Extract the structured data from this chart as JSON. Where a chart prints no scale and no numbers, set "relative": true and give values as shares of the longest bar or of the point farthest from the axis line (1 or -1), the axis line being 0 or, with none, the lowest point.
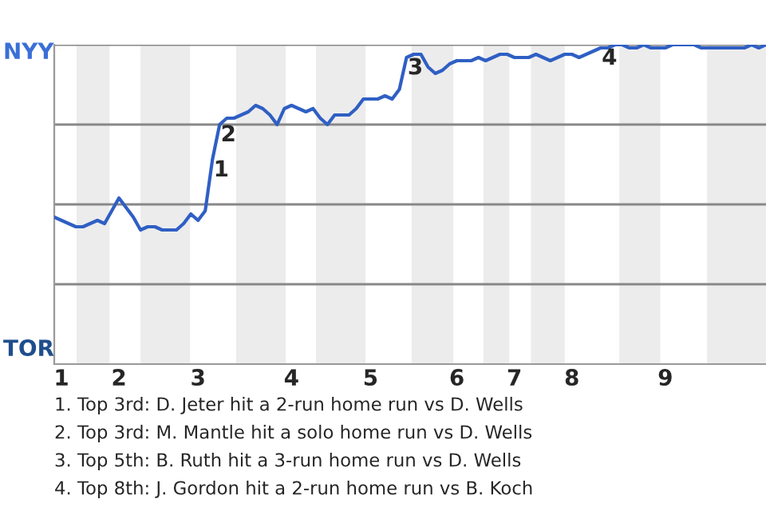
{
  "chart_data": {
    "type": "line",
    "relative": true,
    "categories": [
      null,
      "1",
      null,
      null,
      null,
      null,
      null,
      null,
      null,
      "2",
      null,
      null,
      null,
      null,
      null,
      null,
      null,
      null,
      null,
      null,
      "3",
      null,
      null,
      null,
      null,
      null,
      null,
      null,
      null,
      null,
      null,
      null,
      null,
      "4",
      null,
      null,
      null,
      null,
      null,
      null,
      null,
      null,
      null,
      null,
      "5",
      null,
      null,
      null,
      null,
      null,
      null,
      null,
      null,
      null,
      null,
      null,
      "6",
      null,
      null,
      null,
      null,
      null,
      null,
      null,
      "7",
      null,
      null,
      null,
      null,
      null,
      null,
      null,
      "8",
      null,
      null,
      null,
      null,
      null,
      null,
      null,
      null,
      null,
      null,
      null,
      null,
      "9",
      null,
      null,
      null,
      null,
      null,
      null,
      null,
      null,
      null,
      null,
      null,
      null,
      null,
      null
    ],
    "legend": false,
    "marker": "none",
    "line_style": "solid",
    "ref_lines": [
      {
        "axis": "y",
        "value": 0.25,
        "color": "#888888"
      },
      {
        "axis": "y",
        "value": 0.5,
        "color": "#888888"
      },
      {
        "axis": "y",
        "value": 0.75,
        "color": "#888888"
      },
      {
        "axis": "y",
        "value": 1,
        "color": "#888888"
      }
    ],
    "series": [
      {
        "color": "#2f5fc4",
        "values": [
          0.46,
          0.45,
          0.44,
          0.43,
          0.43,
          0.44,
          0.45,
          0.44,
          0.48,
          0.52,
          0.49,
          0.46,
          0.42,
          0.43,
          0.43,
          0.42,
          0.42,
          0.42,
          0.44,
          0.47,
          0.45,
          0.48,
          0.64,
          0.75,
          0.77,
          0.77,
          0.78,
          0.79,
          0.81,
          0.8,
          0.78,
          0.75,
          0.8,
          0.81,
          0.8,
          0.79,
          0.8,
          0.77,
          0.75,
          0.78,
          0.78,
          0.78,
          0.8,
          0.83,
          0.83,
          0.83,
          0.84,
          0.83,
          0.86,
          0.96,
          0.97,
          0.97,
          0.93,
          0.91,
          0.92,
          0.94,
          0.95,
          0.95,
          0.95,
          0.96,
          0.95,
          0.96,
          0.97,
          0.97,
          0.96,
          0.96,
          0.96,
          0.97,
          0.96,
          0.95,
          0.96,
          0.97,
          0.97,
          0.96,
          0.97,
          0.98,
          0.99,
          0.99,
          1,
          1,
          0.99,
          0.99,
          1,
          0.99,
          0.99,
          0.99,
          1,
          1,
          1,
          1,
          0.99,
          0.99,
          0.99,
          0.99,
          0.99,
          0.99,
          0.99,
          1,
          0.99,
          1
        ]
      }
    ],
    "annotations": [
      "NYY",
      "TOR",
      {
        "text": "1",
        "y": 0.64
      },
      {
        "text": "2",
        "y": 0.75
      },
      {
        "text": "3",
        "y": 0.96
      },
      {
        "text": "4",
        "y": 0.99
      },
      "1. Top 3rd: D. Jeter hit a 2-run home run vs D. Wells",
      "2. Top 3rd: M. Mantle hit a solo home run vs D. Wells",
      "3. Top 5th: B. Ruth hit a 3-run home run vs D. Wells",
      "4. Top 8th: J. Gordon hit a 2-run home run vs B. Koch"
    ]
  }
}
